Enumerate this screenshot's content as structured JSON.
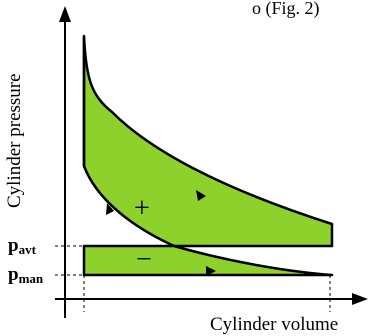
{
  "header": {
    "fragment": "o (Fig. 2)"
  },
  "axes": {
    "x_label": "Cylinder volume",
    "y_label": "Cylinder pressure"
  },
  "levels": {
    "p_avt": {
      "main": "p",
      "sub": "avt"
    },
    "p_man": {
      "main": "p",
      "sub": "man"
    }
  },
  "signs": {
    "positive": "+",
    "negative": "−"
  },
  "colors": {
    "fill": "#8ed12c",
    "stroke": "#000000"
  }
}
